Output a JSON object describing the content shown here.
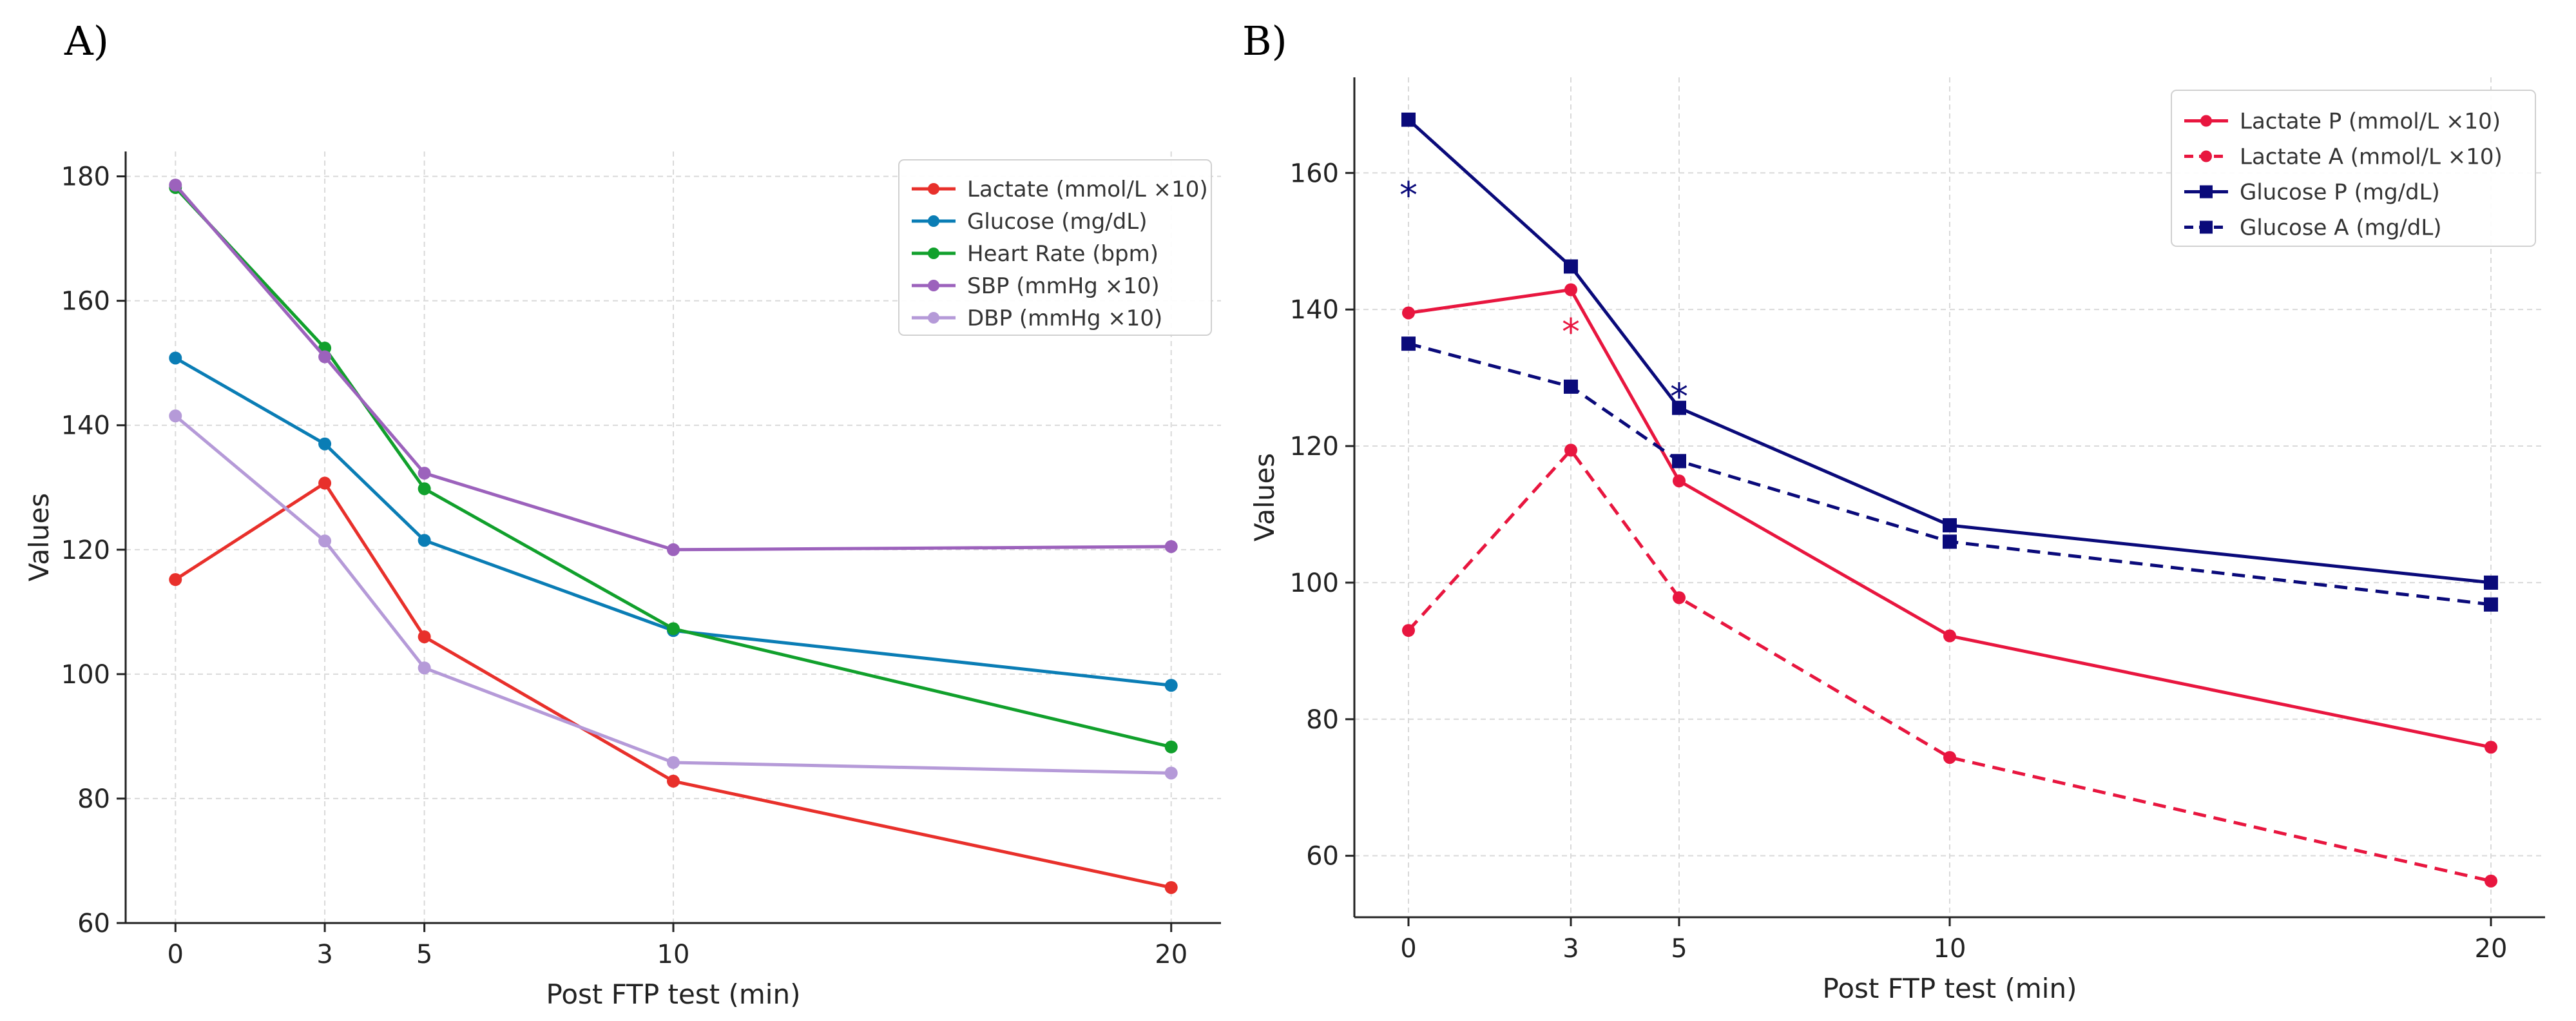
{
  "chart_data": [
    {
      "type": "line",
      "panel_label": "A)",
      "title": "",
      "xlabel": "Post FTP test (min)",
      "ylabel": "Values",
      "x": [
        0,
        3,
        5,
        10,
        20
      ],
      "xticks": [
        "0",
        "3",
        "5",
        "10",
        "20"
      ],
      "xlim": [
        -1,
        21
      ],
      "ylim": [
        60,
        184
      ],
      "yticks": [
        "60",
        "80",
        "100",
        "120",
        "140",
        "160",
        "180"
      ],
      "grid": true,
      "legend": "top-right",
      "series": [
        {
          "name": "Lactate (mmol/L ×10)",
          "color": "#e8302b",
          "dash": "solid",
          "marker": "circle",
          "values": [
            115.2,
            130.7,
            106,
            82.8,
            65.7
          ]
        },
        {
          "name": "Glucose (mg/dL)",
          "color": "#0a7db5",
          "dash": "solid",
          "marker": "circle",
          "values": [
            150.8,
            137,
            121.5,
            107,
            98.2
          ]
        },
        {
          "name": "Heart Rate (bpm)",
          "color": "#11a02c",
          "dash": "solid",
          "marker": "circle",
          "values": [
            178.2,
            152.4,
            129.8,
            107.3,
            88.3
          ]
        },
        {
          "name": "SBP (mmHg ×10)",
          "color": "#9c62bc",
          "dash": "solid",
          "marker": "circle",
          "values": [
            178.6,
            151,
            132.3,
            120,
            120.5
          ]
        },
        {
          "name": "DBP (mmHg ×10)",
          "color": "#b59ad8",
          "dash": "solid",
          "marker": "circle",
          "values": [
            141.5,
            121.4,
            101,
            85.8,
            84.1
          ]
        }
      ],
      "annotations": []
    },
    {
      "type": "line",
      "panel_label": "B)",
      "title": "",
      "xlabel": "Post FTP test (min)",
      "ylabel": "Values",
      "x": [
        0,
        3,
        5,
        10,
        20
      ],
      "xticks": [
        "0",
        "3",
        "5",
        "10",
        "20"
      ],
      "xlim": [
        -1,
        21
      ],
      "ylim": [
        51,
        174
      ],
      "yticks": [
        "60",
        "80",
        "100",
        "120",
        "140",
        "160"
      ],
      "grid": true,
      "legend": "top-right",
      "series": [
        {
          "name": "Lactate P (mmol/L ×10)",
          "color": "#e8163f",
          "dash": "solid",
          "marker": "circle",
          "values": [
            139.5,
            142.9,
            114.9,
            92.2,
            75.9
          ]
        },
        {
          "name": "Lactate A (mmol/L ×10)",
          "color": "#e8163f",
          "dash": "dashed",
          "marker": "circle",
          "values": [
            93,
            119.4,
            97.8,
            74.4,
            56.3
          ]
        },
        {
          "name": "Glucose P (mg/dL)",
          "color": "#0a0a7a",
          "dash": "solid",
          "marker": "square",
          "values": [
            167.8,
            146.3,
            125.6,
            108.4,
            100
          ]
        },
        {
          "name": "Glucose A (mg/dL)",
          "color": "#0a0a7a",
          "dash": "dashed",
          "marker": "square",
          "values": [
            135,
            128.7,
            117.8,
            106,
            96.8
          ]
        }
      ],
      "annotations": [
        {
          "text": "*",
          "x": 0,
          "y": 157,
          "color": "#0a0a7a"
        },
        {
          "text": "*",
          "x": 3,
          "y": 137,
          "color": "#e8163f"
        },
        {
          "text": "*",
          "x": 5,
          "y": 127.5,
          "color": "#0a0a7a"
        }
      ]
    }
  ]
}
